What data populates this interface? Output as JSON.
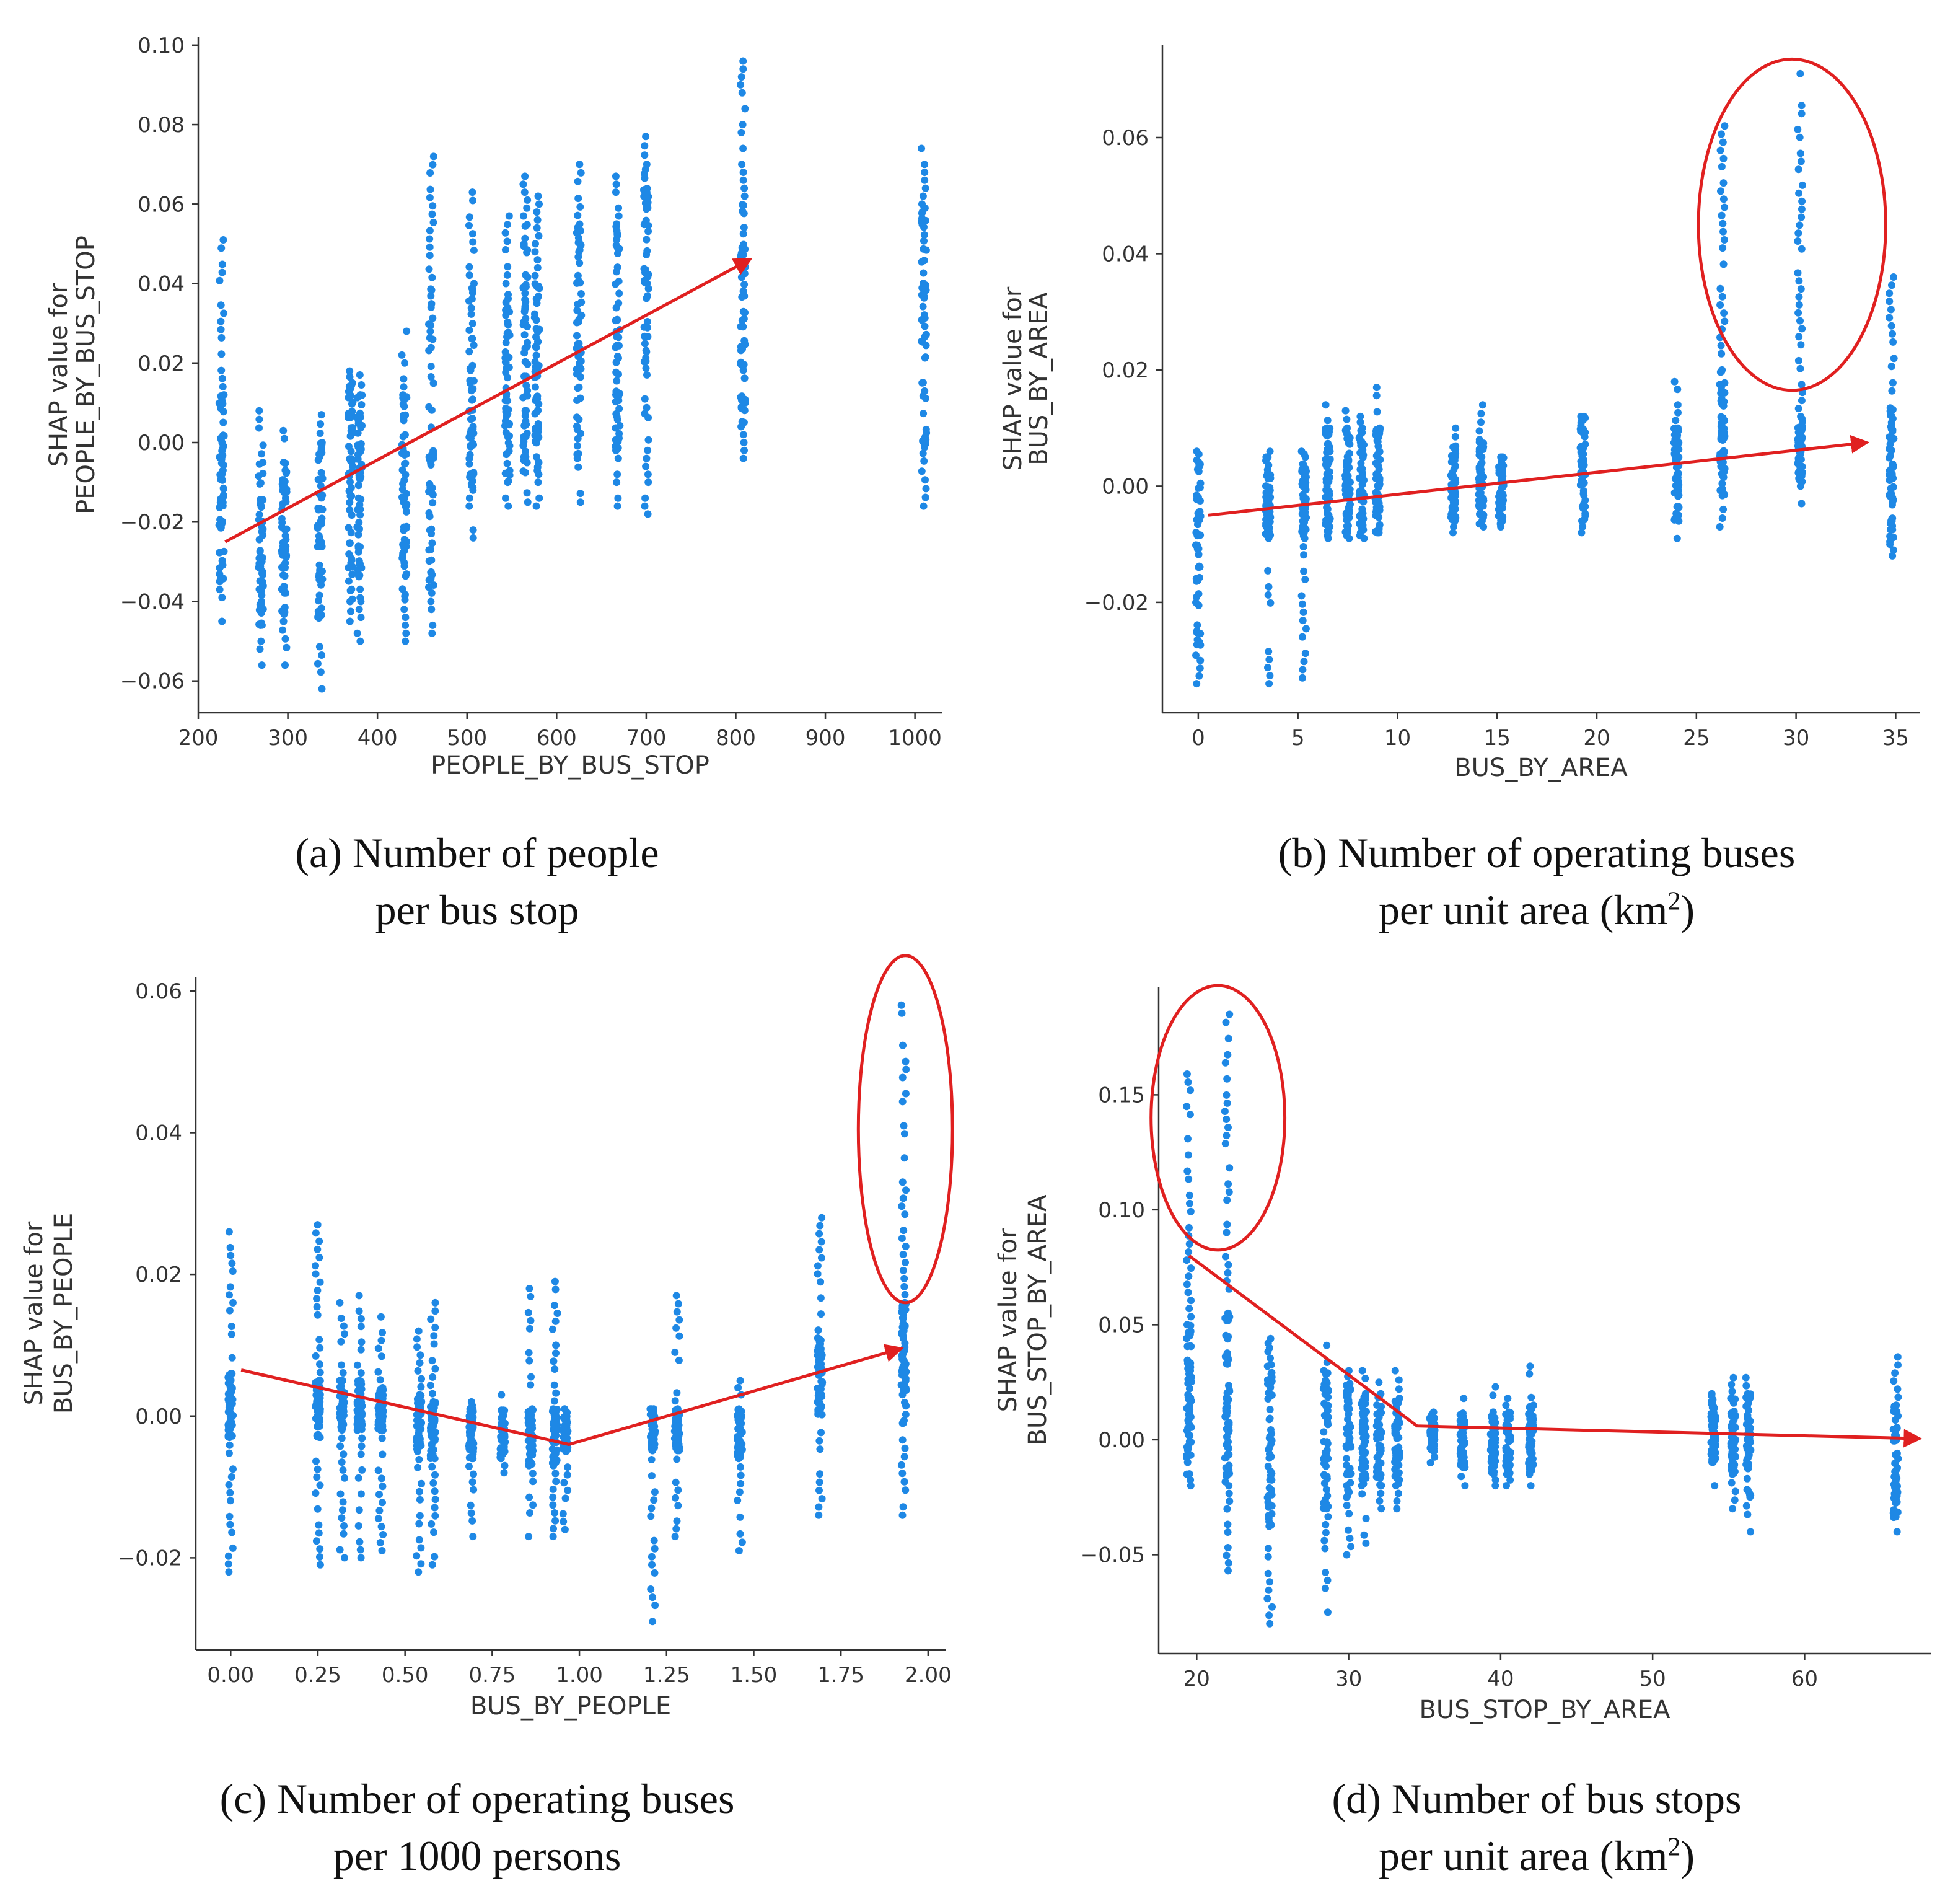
{
  "theme": {
    "point_color": "#1e88e5",
    "trend_color": "#e02020",
    "axis_color": "#333333"
  },
  "chart_data": [
    {
      "id": "a",
      "type": "scatter",
      "title": "",
      "xlabel": "PEOPLE_BY_BUS_STOP",
      "ylabel_lines": [
        "SHAP value for",
        "PEOPLE_BY_BUS_STOP"
      ],
      "xlim": [
        200,
        1030
      ],
      "ylim": [
        -0.068,
        0.102
      ],
      "xticks": [
        200,
        300,
        400,
        500,
        600,
        700,
        800,
        900,
        1000
      ],
      "xtick_labels": [
        "200",
        "300",
        "400",
        "500",
        "600",
        "700",
        "800",
        "900",
        "1000"
      ],
      "yticks": [
        -0.06,
        -0.04,
        -0.02,
        0.0,
        0.02,
        0.04,
        0.06,
        0.08,
        0.1
      ],
      "ytick_labels": [
        "−0.06",
        "−0.04",
        "−0.02",
        "0.00",
        "0.02",
        "0.04",
        "0.06",
        "0.08",
        "0.10"
      ],
      "columns": [
        {
          "x": 226,
          "min": -0.045,
          "core": [
            -0.035,
            0.012
          ],
          "max": 0.051
        },
        {
          "x": 270,
          "min": -0.056,
          "core": [
            -0.046,
            -0.005
          ],
          "max": 0.008
        },
        {
          "x": 296,
          "min": -0.056,
          "core": [
            -0.045,
            -0.005
          ],
          "max": 0.003
        },
        {
          "x": 336,
          "min": -0.062,
          "core": [
            -0.045,
            0.0
          ],
          "max": 0.007
        },
        {
          "x": 370,
          "min": -0.045,
          "core": [
            -0.04,
            0.015
          ],
          "max": 0.018
        },
        {
          "x": 380,
          "min": -0.05,
          "core": [
            -0.04,
            0.012
          ],
          "max": 0.017
        },
        {
          "x": 430,
          "min": -0.05,
          "core": [
            -0.04,
            0.012
          ],
          "max": 0.028
        },
        {
          "x": 460,
          "min": -0.048,
          "core": [
            -0.038,
            0.045
          ],
          "max": 0.072
        },
        {
          "x": 505,
          "min": -0.024,
          "core": [
            -0.012,
            0.04
          ],
          "max": 0.063
        },
        {
          "x": 545,
          "min": -0.016,
          "core": [
            -0.01,
            0.04
          ],
          "max": 0.057
        },
        {
          "x": 565,
          "min": -0.015,
          "core": [
            -0.008,
            0.055
          ],
          "max": 0.067
        },
        {
          "x": 578,
          "min": -0.016,
          "core": [
            -0.008,
            0.04
          ],
          "max": 0.062
        },
        {
          "x": 625,
          "min": -0.015,
          "core": [
            -0.004,
            0.055
          ],
          "max": 0.07
        },
        {
          "x": 668,
          "min": -0.016,
          "core": [
            -0.002,
            0.055
          ],
          "max": 0.067
        },
        {
          "x": 700,
          "min": -0.018,
          "core": [
            0.0,
            0.07
          ],
          "max": 0.077
        },
        {
          "x": 808,
          "min": -0.004,
          "core": [
            0.004,
            0.06
          ],
          "max": 0.096
        },
        {
          "x": 1010,
          "min": -0.016,
          "core": [
            -0.005,
            0.06
          ],
          "max": 0.074
        }
      ],
      "trend": [
        [
          230,
          -0.025
        ],
        [
          815,
          0.046
        ]
      ],
      "highlights": []
    },
    {
      "id": "b",
      "type": "scatter",
      "title": "",
      "xlabel": "BUS_BY_AREA",
      "ylabel_lines": [
        "SHAP value for",
        "BUS_BY_AREA"
      ],
      "xlim": [
        -1.8,
        36.2
      ],
      "ylim": [
        -0.039,
        0.076
      ],
      "xticks": [
        0,
        5,
        10,
        15,
        20,
        25,
        30,
        35
      ],
      "xtick_labels": [
        "0",
        "5",
        "10",
        "15",
        "20",
        "25",
        "30",
        "35"
      ],
      "yticks": [
        -0.02,
        0.0,
        0.02,
        0.04,
        0.06
      ],
      "ytick_labels": [
        "−0.02",
        "0.00",
        "0.02",
        "0.04",
        "0.06"
      ],
      "columns": [
        {
          "x": 0.0,
          "min": -0.034,
          "core": [
            -0.03,
            0.005
          ],
          "max": 0.006
        },
        {
          "x": 3.5,
          "min": -0.034,
          "core": [
            -0.009,
            0.005
          ],
          "max": 0.006
        },
        {
          "x": 5.3,
          "min": -0.033,
          "core": [
            -0.009,
            0.005
          ],
          "max": 0.006
        },
        {
          "x": 6.5,
          "min": -0.009,
          "core": [
            -0.008,
            0.01
          ],
          "max": 0.014
        },
        {
          "x": 7.5,
          "min": -0.009,
          "core": [
            -0.008,
            0.01
          ],
          "max": 0.013
        },
        {
          "x": 8.2,
          "min": -0.009,
          "core": [
            -0.008,
            0.01
          ],
          "max": 0.012
        },
        {
          "x": 9.0,
          "min": -0.008,
          "core": [
            -0.008,
            0.01
          ],
          "max": 0.017
        },
        {
          "x": 12.8,
          "min": -0.008,
          "core": [
            -0.006,
            0.007
          ],
          "max": 0.01
        },
        {
          "x": 14.2,
          "min": -0.007,
          "core": [
            -0.006,
            0.008
          ],
          "max": 0.014
        },
        {
          "x": 15.2,
          "min": -0.007,
          "core": [
            -0.006,
            0.005
          ],
          "max": 0.005
        },
        {
          "x": 19.3,
          "min": -0.008,
          "core": [
            -0.006,
            0.012
          ],
          "max": 0.012
        },
        {
          "x": 24.0,
          "min": -0.009,
          "core": [
            -0.006,
            0.01
          ],
          "max": 0.018
        },
        {
          "x": 26.3,
          "min": -0.007,
          "core": [
            -0.004,
            0.02
          ],
          "max": 0.062
        },
        {
          "x": 30.2,
          "min": -0.003,
          "core": [
            0.0,
            0.012
          ],
          "max": 0.071
        },
        {
          "x": 34.8,
          "min": -0.012,
          "core": [
            -0.01,
            0.015
          ],
          "max": 0.036
        }
      ],
      "trend": [
        [
          0.5,
          -0.005
        ],
        [
          33.5,
          0.0075
        ]
      ],
      "highlights": [
        {
          "cx": 29.8,
          "cy": 0.045,
          "rx": 4.7,
          "ry": 0.0285
        }
      ]
    },
    {
      "id": "c",
      "type": "scatter",
      "title": "",
      "xlabel": "BUS_BY_PEOPLE",
      "ylabel_lines": [
        "SHAP value for",
        "BUS_BY_PEOPLE"
      ],
      "xlim": [
        -0.1,
        2.05
      ],
      "ylim": [
        -0.033,
        0.062
      ],
      "xticks": [
        0.0,
        0.25,
        0.5,
        0.75,
        1.0,
        1.25,
        1.5,
        1.75,
        2.0
      ],
      "xtick_labels": [
        "0.00",
        "0.25",
        "0.50",
        "0.75",
        "1.00",
        "1.25",
        "1.50",
        "1.75",
        "2.00"
      ],
      "yticks": [
        -0.02,
        0.0,
        0.02,
        0.04,
        0.06
      ],
      "ytick_labels": [
        "−0.02",
        "0.00",
        "0.02",
        "0.04",
        "0.06"
      ],
      "columns": [
        {
          "x": 0.0,
          "min": -0.022,
          "core": [
            -0.003,
            0.006
          ],
          "max": 0.026
        },
        {
          "x": 0.25,
          "min": -0.021,
          "core": [
            -0.003,
            0.005
          ],
          "max": 0.027
        },
        {
          "x": 0.32,
          "min": -0.02,
          "core": [
            -0.002,
            0.005
          ],
          "max": 0.016
        },
        {
          "x": 0.37,
          "min": -0.02,
          "core": [
            -0.002,
            0.005
          ],
          "max": 0.017
        },
        {
          "x": 0.43,
          "min": -0.019,
          "core": [
            -0.002,
            0.004
          ],
          "max": 0.014
        },
        {
          "x": 0.54,
          "min": -0.022,
          "core": [
            -0.005,
            0.003
          ],
          "max": 0.012
        },
        {
          "x": 0.58,
          "min": -0.021,
          "core": [
            -0.006,
            0.002
          ],
          "max": 0.016
        },
        {
          "x": 0.69,
          "min": -0.017,
          "core": [
            -0.006,
            0.001
          ],
          "max": 0.002
        },
        {
          "x": 0.78,
          "min": -0.008,
          "core": [
            -0.006,
            0.001
          ],
          "max": 0.003
        },
        {
          "x": 0.86,
          "min": -0.017,
          "core": [
            -0.007,
            0.001
          ],
          "max": 0.018
        },
        {
          "x": 0.93,
          "min": -0.017,
          "core": [
            -0.007,
            0.001
          ],
          "max": 0.019
        },
        {
          "x": 0.96,
          "min": -0.016,
          "core": [
            -0.005,
            0.0
          ],
          "max": 0.001
        },
        {
          "x": 1.21,
          "min": -0.029,
          "core": [
            -0.005,
            0.001
          ],
          "max": 0.001
        },
        {
          "x": 1.28,
          "min": -0.017,
          "core": [
            -0.005,
            0.001
          ],
          "max": 0.017
        },
        {
          "x": 1.46,
          "min": -0.019,
          "core": [
            -0.006,
            0.001
          ],
          "max": 0.005
        },
        {
          "x": 1.69,
          "min": -0.014,
          "core": [
            0.0,
            0.011
          ],
          "max": 0.028
        },
        {
          "x": 1.93,
          "min": -0.014,
          "core": [
            -0.001,
            0.016
          ],
          "max": 0.058
        }
      ],
      "trend": [
        [
          0.03,
          0.0065
        ],
        [
          0.97,
          -0.004
        ],
        [
          1.92,
          0.0095
        ]
      ],
      "highlights": [
        {
          "cx": 1.935,
          "cy": 0.0405,
          "rx": 0.135,
          "ry": 0.0245
        }
      ]
    },
    {
      "id": "d",
      "type": "scatter",
      "title": "",
      "xlabel": "BUS_STOP_BY_AREA",
      "ylabel_lines": [
        "SHAP value for",
        "BUS_STOP_BY_AREA"
      ],
      "xlim": [
        17.5,
        68.3
      ],
      "ylim": [
        -0.093,
        0.197
      ],
      "xticks": [
        20,
        30,
        40,
        50,
        60
      ],
      "xtick_labels": [
        "20",
        "30",
        "40",
        "50",
        "60"
      ],
      "yticks": [
        -0.05,
        0.0,
        0.05,
        0.1,
        0.15
      ],
      "ytick_labels": [
        "−0.05",
        "0.00",
        "0.05",
        "0.10",
        "0.15"
      ],
      "columns": [
        {
          "x": 19.5,
          "min": -0.02,
          "core": [
            -0.015,
            0.05
          ],
          "max": 0.159
        },
        {
          "x": 22.0,
          "min": -0.057,
          "core": [
            -0.02,
            0.055
          ],
          "max": 0.185
        },
        {
          "x": 24.8,
          "min": -0.08,
          "core": [
            -0.04,
            0.04
          ],
          "max": 0.044
        },
        {
          "x": 28.5,
          "min": -0.075,
          "core": [
            -0.03,
            0.03
          ],
          "max": 0.041
        },
        {
          "x": 30.0,
          "min": -0.05,
          "core": [
            -0.025,
            0.025
          ],
          "max": 0.03
        },
        {
          "x": 31.0,
          "min": -0.045,
          "core": [
            -0.02,
            0.02
          ],
          "max": 0.03
        },
        {
          "x": 32.0,
          "min": -0.03,
          "core": [
            -0.02,
            0.02
          ],
          "max": 0.025
        },
        {
          "x": 33.2,
          "min": -0.03,
          "core": [
            -0.02,
            0.018
          ],
          "max": 0.03
        },
        {
          "x": 35.5,
          "min": -0.01,
          "core": [
            -0.005,
            0.01
          ],
          "max": 0.012
        },
        {
          "x": 37.5,
          "min": -0.02,
          "core": [
            -0.012,
            0.012
          ],
          "max": 0.018
        },
        {
          "x": 39.5,
          "min": -0.02,
          "core": [
            -0.015,
            0.012
          ],
          "max": 0.023
        },
        {
          "x": 40.5,
          "min": -0.02,
          "core": [
            -0.015,
            0.012
          ],
          "max": 0.018
        },
        {
          "x": 42.0,
          "min": -0.02,
          "core": [
            -0.015,
            0.015
          ],
          "max": 0.032
        },
        {
          "x": 54.0,
          "min": -0.02,
          "core": [
            -0.01,
            0.018
          ],
          "max": 0.02
        },
        {
          "x": 55.3,
          "min": -0.03,
          "core": [
            -0.015,
            0.018
          ],
          "max": 0.027
        },
        {
          "x": 56.3,
          "min": -0.04,
          "core": [
            -0.025,
            0.02
          ],
          "max": 0.027
        },
        {
          "x": 66.0,
          "min": -0.04,
          "core": [
            -0.035,
            0.015
          ],
          "max": 0.036
        }
      ],
      "trend": [
        [
          19.5,
          0.08
        ],
        [
          34.5,
          0.006
        ],
        [
          67.5,
          0.0005
        ]
      ],
      "highlights": [
        {
          "cx": 21.4,
          "cy": 0.14,
          "rx": 4.4,
          "ry": 0.0575
        }
      ]
    }
  ],
  "captions": [
    {
      "line1": "(a) Number of people",
      "line2": "per bus stop",
      "line2_sup": ""
    },
    {
      "line1": "(b) Number of operating buses",
      "line2": "per unit area (km",
      "line2_sup": "2",
      "line2_end": ")"
    },
    {
      "line1": "(c) Number of operating buses",
      "line2": "per 1000 persons",
      "line2_sup": ""
    },
    {
      "line1": "(d) Number of bus stops",
      "line2": "per unit area (km",
      "line2_sup": "2",
      "line2_end": ")"
    }
  ]
}
